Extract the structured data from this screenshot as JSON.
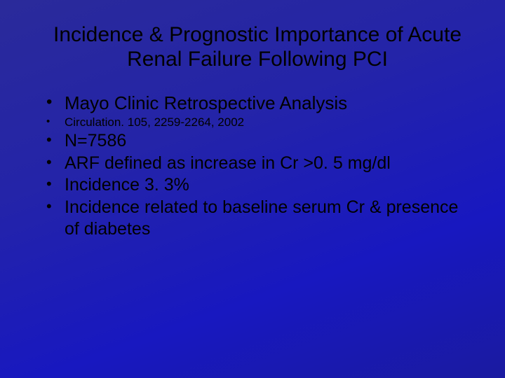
{
  "slide": {
    "background_gradient": [
      "#2a2a9a",
      "#2424a8",
      "#1818c0",
      "#1a1aa0"
    ],
    "text_color": "#000000",
    "font_family": "Arial",
    "title": {
      "text": "Incidence & Prognostic Importance of Acute Renal Failure Following PCI",
      "font_size_pt": 30,
      "font_weight": "normal",
      "align": "center"
    },
    "bullets": [
      {
        "text": "Mayo Clinic Retrospective Analysis",
        "level": "large",
        "font_size_pt": 26
      },
      {
        "text": "Circulation. 105, 2259-2264, 2002",
        "level": "small",
        "font_size_pt": 17
      },
      {
        "text": "N=7586",
        "level": "med",
        "font_size_pt": 25
      },
      {
        "text": "ARF defined as increase in Cr >0. 5 mg/dl",
        "level": "med",
        "font_size_pt": 25
      },
      {
        "text": "Incidence 3. 3%",
        "level": "med",
        "font_size_pt": 25
      },
      {
        "text": "Incidence related to baseline serum Cr & presence of diabetes",
        "level": "med",
        "font_size_pt": 25
      }
    ]
  }
}
